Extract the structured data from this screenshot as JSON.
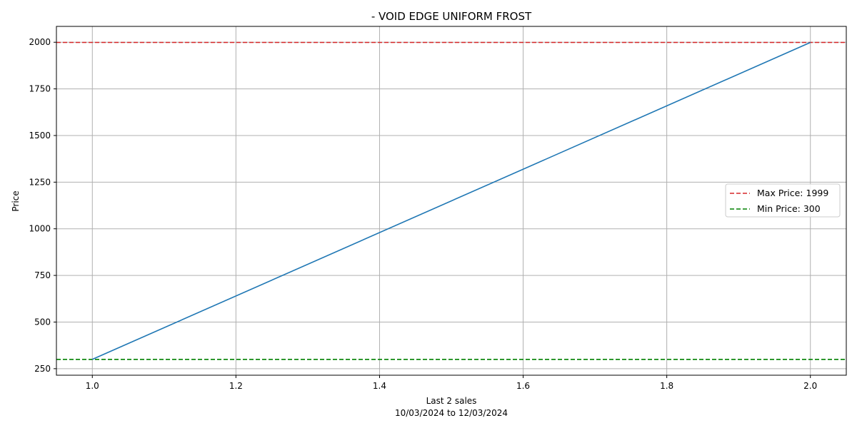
{
  "chart_data": {
    "type": "line",
    "title": "- VOID EDGE UNIFORM FROST",
    "xlabel": "Last 2 sales",
    "xlabel_sub": "10/03/2024 to 12/03/2024",
    "ylabel": "Price",
    "xlim": [
      0.95,
      2.05
    ],
    "ylim": [
      215,
      2085
    ],
    "xticks": [
      1.0,
      1.2,
      1.4,
      1.6,
      1.8,
      2.0
    ],
    "xtick_labels": [
      "1.0",
      "1.2",
      "1.4",
      "1.6",
      "1.8",
      "2.0"
    ],
    "yticks": [
      250,
      500,
      750,
      1000,
      1250,
      1500,
      1750,
      2000
    ],
    "ytick_labels": [
      "250",
      "500",
      "750",
      "1000",
      "1250",
      "1500",
      "1750",
      "2000"
    ],
    "grid": true,
    "series": [
      {
        "x": [
          1,
          2
        ],
        "values": [
          300,
          1999
        ],
        "color": "#1f77b4"
      }
    ],
    "reference_lines": [
      {
        "name": "Max Price: 1999",
        "y": 1999,
        "color": "#d62728",
        "style": "dashed"
      },
      {
        "name": "Min Price: 300",
        "y": 300,
        "color": "#008000",
        "style": "dashed"
      }
    ],
    "legend": "center-right"
  }
}
